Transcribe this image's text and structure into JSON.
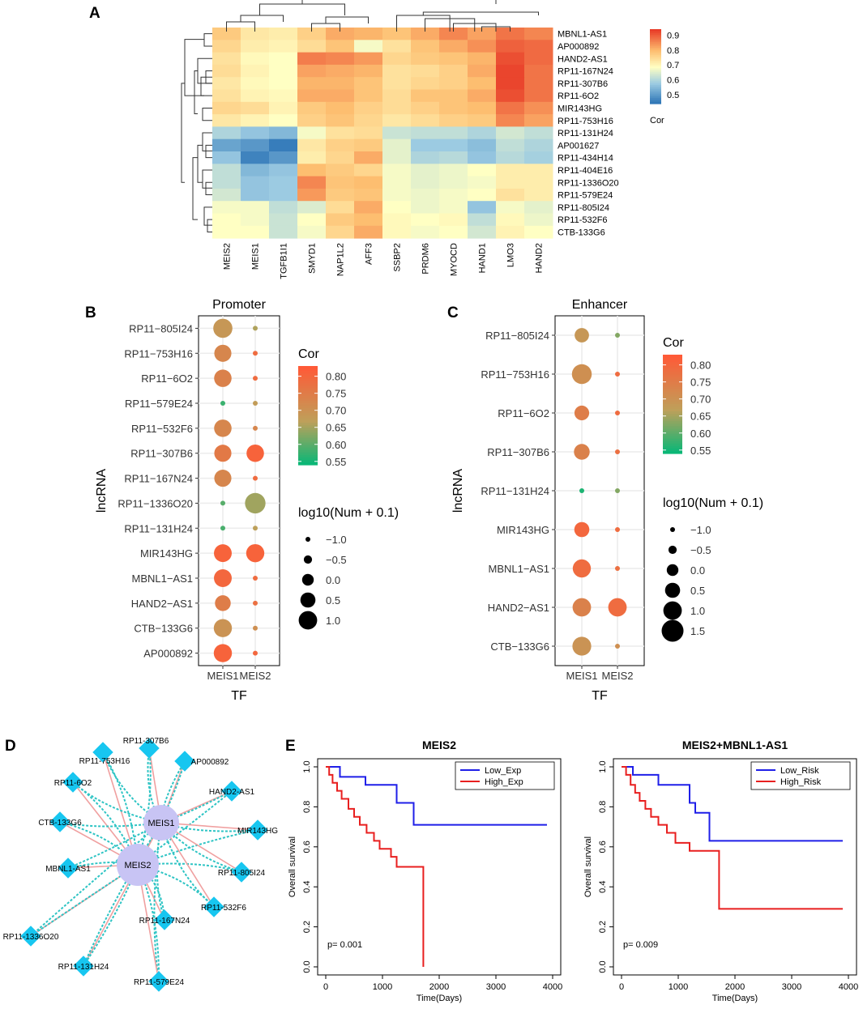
{
  "panels": {
    "A": "A",
    "B": "B",
    "C": "C",
    "D": "D",
    "E": "E"
  },
  "chart_data": [
    {
      "id": "A",
      "type": "heatmap",
      "title": "",
      "columns": [
        "MEIS2",
        "MEIS1",
        "TGFB1I1",
        "SMYD1",
        "NAP1L2",
        "AFF3",
        "SSBP2",
        "PRDM6",
        "MYOCD",
        "HAND1",
        "LMO3",
        "HAND2"
      ],
      "rows": [
        "MBNL1-AS1",
        "AP000892",
        "HAND2-AS1",
        "RP11-167N24",
        "RP11-307B6",
        "RP11-6O2",
        "MIR143HG",
        "RP11-753H16",
        "RP11-131H24",
        "AP001627",
        "RP11-434H14",
        "RP11-404E16",
        "RP11-1336O20",
        "RP11-579E24",
        "RP11-805I24",
        "RP11-532F6",
        "CTB-133G6"
      ],
      "values": [
        [
          0.78,
          0.73,
          0.72,
          0.77,
          0.82,
          0.81,
          0.79,
          0.82,
          0.86,
          0.83,
          0.88,
          0.86
        ],
        [
          0.76,
          0.72,
          0.71,
          0.75,
          0.79,
          0.68,
          0.74,
          0.79,
          0.82,
          0.85,
          0.9,
          0.89
        ],
        [
          0.74,
          0.7,
          0.69,
          0.87,
          0.86,
          0.84,
          0.76,
          0.78,
          0.79,
          0.81,
          0.92,
          0.89
        ],
        [
          0.75,
          0.71,
          0.69,
          0.83,
          0.82,
          0.81,
          0.74,
          0.75,
          0.77,
          0.82,
          0.93,
          0.88
        ],
        [
          0.73,
          0.7,
          0.69,
          0.81,
          0.81,
          0.79,
          0.74,
          0.76,
          0.77,
          0.8,
          0.93,
          0.88
        ],
        [
          0.74,
          0.71,
          0.7,
          0.82,
          0.82,
          0.79,
          0.75,
          0.79,
          0.79,
          0.82,
          0.92,
          0.88
        ],
        [
          0.76,
          0.75,
          0.71,
          0.78,
          0.8,
          0.77,
          0.75,
          0.77,
          0.79,
          0.8,
          0.88,
          0.85
        ],
        [
          0.73,
          0.71,
          0.69,
          0.77,
          0.79,
          0.76,
          0.73,
          0.75,
          0.77,
          0.78,
          0.86,
          0.83
        ],
        [
          0.6,
          0.57,
          0.55,
          0.68,
          0.74,
          0.75,
          0.63,
          0.62,
          0.62,
          0.6,
          0.64,
          0.62
        ],
        [
          0.52,
          0.5,
          0.46,
          0.73,
          0.77,
          0.78,
          0.66,
          0.58,
          0.58,
          0.56,
          0.62,
          0.6
        ],
        [
          0.57,
          0.47,
          0.5,
          0.72,
          0.76,
          0.82,
          0.66,
          0.6,
          0.61,
          0.57,
          0.61,
          0.59
        ],
        [
          0.62,
          0.55,
          0.57,
          0.8,
          0.78,
          0.76,
          0.68,
          0.66,
          0.67,
          0.69,
          0.72,
          0.72
        ],
        [
          0.62,
          0.57,
          0.58,
          0.86,
          0.79,
          0.8,
          0.68,
          0.66,
          0.67,
          0.68,
          0.72,
          0.72
        ],
        [
          0.64,
          0.57,
          0.58,
          0.84,
          0.78,
          0.79,
          0.68,
          0.67,
          0.68,
          0.69,
          0.74,
          0.72
        ],
        [
          0.68,
          0.68,
          0.62,
          0.65,
          0.75,
          0.82,
          0.69,
          0.67,
          0.68,
          0.57,
          0.68,
          0.66
        ],
        [
          0.69,
          0.68,
          0.63,
          0.69,
          0.78,
          0.8,
          0.7,
          0.69,
          0.7,
          0.62,
          0.7,
          0.67
        ],
        [
          0.69,
          0.69,
          0.63,
          0.68,
          0.76,
          0.82,
          0.7,
          0.68,
          0.69,
          0.64,
          0.71,
          0.69
        ]
      ],
      "legend": {
        "title": "Cor",
        "ticks": [
          "0.9",
          "0.8",
          "0.7",
          "0.6",
          "0.5"
        ],
        "min": 0.44,
        "max": 0.94
      }
    },
    {
      "id": "B",
      "type": "scatter",
      "title": "Promoter",
      "xlabel": "TF",
      "ylabel": "lncRNA",
      "categories_x": [
        "MEIS1",
        "MEIS2"
      ],
      "categories_y": [
        "RP11−805I24",
        "RP11−753H16",
        "RP11−6O2",
        "RP11−579E24",
        "RP11−532F6",
        "RP11−307B6",
        "RP11−167N24",
        "RP11−1336O20",
        "RP11−131H24",
        "MIR143HG",
        "MBNL1−AS1",
        "HAND2−AS1",
        "CTB−133G6",
        "AP000892"
      ],
      "points": [
        {
          "x": "MEIS1",
          "y": "RP11−805I24",
          "num": 1.1,
          "cor": 0.69
        },
        {
          "x": "MEIS2",
          "y": "RP11−805I24",
          "num": -1.0,
          "cor": 0.66
        },
        {
          "x": "MEIS1",
          "y": "RP11−753H16",
          "num": 0.8,
          "cor": 0.73
        },
        {
          "x": "MEIS2",
          "y": "RP11−753H16",
          "num": -1.0,
          "cor": 0.79
        },
        {
          "x": "MEIS1",
          "y": "RP11−6O2",
          "num": 0.85,
          "cor": 0.74
        },
        {
          "x": "MEIS2",
          "y": "RP11−6O2",
          "num": -1.0,
          "cor": 0.79
        },
        {
          "x": "MEIS1",
          "y": "RP11−579E24",
          "num": -1.0,
          "cor": 0.58
        },
        {
          "x": "MEIS2",
          "y": "RP11−579E24",
          "num": -1.0,
          "cor": 0.68
        },
        {
          "x": "MEIS1",
          "y": "RP11−532F6",
          "num": 0.85,
          "cor": 0.73
        },
        {
          "x": "MEIS2",
          "y": "RP11−532F6",
          "num": -1.0,
          "cor": 0.73
        },
        {
          "x": "MEIS1",
          "y": "RP11−307B6",
          "num": 0.8,
          "cor": 0.76
        },
        {
          "x": "MEIS2",
          "y": "RP11−307B6",
          "num": 0.85,
          "cor": 0.81
        },
        {
          "x": "MEIS1",
          "y": "RP11−167N24",
          "num": 0.8,
          "cor": 0.73
        },
        {
          "x": "MEIS2",
          "y": "RP11−167N24",
          "num": -1.0,
          "cor": 0.79
        },
        {
          "x": "MEIS1",
          "y": "RP11−1336O20",
          "num": -1.0,
          "cor": 0.6
        },
        {
          "x": "MEIS2",
          "y": "RP11−1336O20",
          "num": 1.3,
          "cor": 0.65
        },
        {
          "x": "MEIS1",
          "y": "RP11−131H24",
          "num": -1.0,
          "cor": 0.59
        },
        {
          "x": "MEIS2",
          "y": "RP11−131H24",
          "num": -1.0,
          "cor": 0.67
        },
        {
          "x": "MEIS1",
          "y": "MIR143HG",
          "num": 0.9,
          "cor": 0.81
        },
        {
          "x": "MEIS2",
          "y": "MIR143HG",
          "num": 0.95,
          "cor": 0.81
        },
        {
          "x": "MEIS1",
          "y": "MBNL1−AS1",
          "num": 0.9,
          "cor": 0.8
        },
        {
          "x": "MEIS2",
          "y": "MBNL1−AS1",
          "num": -1.0,
          "cor": 0.79
        },
        {
          "x": "MEIS1",
          "y": "HAND2−AS1",
          "num": 0.6,
          "cor": 0.75
        },
        {
          "x": "MEIS2",
          "y": "HAND2−AS1",
          "num": -1.0,
          "cor": 0.78
        },
        {
          "x": "MEIS1",
          "y": "CTB−133G6",
          "num": 0.95,
          "cor": 0.7
        },
        {
          "x": "MEIS2",
          "y": "CTB−133G6",
          "num": -1.0,
          "cor": 0.71
        },
        {
          "x": "MEIS1",
          "y": "AP000892",
          "num": 0.95,
          "cor": 0.81
        },
        {
          "x": "MEIS2",
          "y": "AP000892",
          "num": -1.0,
          "cor": 0.8
        }
      ],
      "color_legend": {
        "title": "Cor",
        "ticks": [
          "0.80",
          "0.75",
          "0.70",
          "0.65",
          "0.60",
          "0.55"
        ],
        "min": 0.54,
        "max": 0.83
      },
      "size_legend": {
        "title": "log10(Num + 0.1)",
        "labels": [
          "−1.0",
          "−0.5",
          "0.0",
          "0.5",
          "1.0"
        ],
        "values": [
          -1.0,
          -0.5,
          0.0,
          0.5,
          1.0
        ]
      }
    },
    {
      "id": "C",
      "type": "scatter",
      "title": "Enhancer",
      "xlabel": "TF",
      "ylabel": "lncRNA",
      "categories_x": [
        "MEIS1",
        "MEIS2"
      ],
      "categories_y": [
        "RP11−805I24",
        "RP11−753H16",
        "RP11−6O2",
        "RP11−307B6",
        "RP11−131H24",
        "MIR143HG",
        "MBNL1−AS1",
        "HAND2−AS1",
        "CTB−133G6"
      ],
      "points": [
        {
          "x": "MEIS1",
          "y": "RP11−805I24",
          "num": 0.4,
          "cor": 0.69
        },
        {
          "x": "MEIS2",
          "y": "RP11−805I24",
          "num": -1.0,
          "cor": 0.63
        },
        {
          "x": "MEIS1",
          "y": "RP11−753H16",
          "num": 1.2,
          "cor": 0.71
        },
        {
          "x": "MEIS2",
          "y": "RP11−753H16",
          "num": -1.0,
          "cor": 0.79
        },
        {
          "x": "MEIS1",
          "y": "RP11−6O2",
          "num": 0.45,
          "cor": 0.75
        },
        {
          "x": "MEIS2",
          "y": "RP11−6O2",
          "num": -1.0,
          "cor": 0.79
        },
        {
          "x": "MEIS1",
          "y": "RP11−307B6",
          "num": 0.6,
          "cor": 0.74
        },
        {
          "x": "MEIS2",
          "y": "RP11−307B6",
          "num": -1.0,
          "cor": 0.78
        },
        {
          "x": "MEIS1",
          "y": "RP11−131H24",
          "num": -1.0,
          "cor": 0.56
        },
        {
          "x": "MEIS2",
          "y": "RP11−131H24",
          "num": -1.0,
          "cor": 0.63
        },
        {
          "x": "MEIS1",
          "y": "MIR143HG",
          "num": 0.5,
          "cor": 0.8
        },
        {
          "x": "MEIS2",
          "y": "MIR143HG",
          "num": -1.0,
          "cor": 0.79
        },
        {
          "x": "MEIS1",
          "y": "MBNL1−AS1",
          "num": 0.95,
          "cor": 0.79
        },
        {
          "x": "MEIS2",
          "y": "MBNL1−AS1",
          "num": -1.0,
          "cor": 0.78
        },
        {
          "x": "MEIS1",
          "y": "HAND2−AS1",
          "num": 1.0,
          "cor": 0.74
        },
        {
          "x": "MEIS2",
          "y": "HAND2−AS1",
          "num": 1.0,
          "cor": 0.79
        },
        {
          "x": "MEIS1",
          "y": "CTB−133G6",
          "num": 1.05,
          "cor": 0.7
        },
        {
          "x": "MEIS2",
          "y": "CTB−133G6",
          "num": -1.0,
          "cor": 0.71
        }
      ],
      "color_legend": {
        "title": "Cor",
        "ticks": [
          "0.80",
          "0.75",
          "0.70",
          "0.65",
          "0.60",
          "0.55"
        ],
        "min": 0.54,
        "max": 0.83
      },
      "size_legend": {
        "title": "log10(Num + 0.1)",
        "labels": [
          "−1.0",
          "−0.5",
          "0.0",
          "0.5",
          "1.0",
          "1.5"
        ],
        "values": [
          -1.0,
          -0.5,
          0.0,
          0.5,
          1.0,
          1.5
        ]
      }
    },
    {
      "id": "D",
      "type": "network",
      "hubs": [
        "MEIS1",
        "MEIS2"
      ],
      "nodes": [
        "RP11-307B6",
        "RP11-753H16",
        "AP000892",
        "RP11-6O2",
        "HAND2-AS1",
        "CTB-133G6",
        "MIR143HG",
        "MBNL1-AS1",
        "RP11-805I24",
        "RP11-1336O20",
        "RP11-532F6",
        "RP11-167N24",
        "RP11-131H24",
        "RP11-579E24"
      ],
      "colors": {
        "hub": "#c8c4f4",
        "node": "#17c6f0",
        "edge_solid": "#f0a0a0",
        "edge_dashed": "#2ec4c4"
      }
    },
    {
      "id": "E1",
      "type": "line",
      "title": "MEIS2",
      "xlabel": "Time(Days)",
      "ylabel": "Overall survival",
      "xlim": [
        0,
        4000
      ],
      "ylim": [
        0,
        1.0
      ],
      "xticks": [
        0,
        1000,
        2000,
        3000,
        4000
      ],
      "yticks": [
        0.0,
        0.2,
        0.4,
        0.6,
        0.8,
        1.0
      ],
      "annotation": "p= 0.001",
      "series": [
        {
          "name": "Low_Exp",
          "color": "#1f1fe8",
          "x": [
            0,
            250,
            450,
            700,
            1000,
            1250,
            1550,
            3900
          ],
          "y": [
            1.0,
            0.95,
            0.95,
            0.91,
            0.91,
            0.82,
            0.71,
            0.71
          ]
        },
        {
          "name": "High_Exp",
          "color": "#e81f1f",
          "x": [
            0,
            60,
            120,
            200,
            280,
            400,
            500,
            600,
            720,
            850,
            950,
            1150,
            1250,
            1720
          ],
          "y": [
            1.0,
            0.96,
            0.92,
            0.88,
            0.84,
            0.79,
            0.75,
            0.71,
            0.67,
            0.63,
            0.59,
            0.55,
            0.5,
            0.0
          ]
        }
      ]
    },
    {
      "id": "E2",
      "type": "line",
      "title": "MEIS2+MBNL1-AS1",
      "xlabel": "Time(Days)",
      "ylabel": "Overall survival",
      "xlim": [
        0,
        4000
      ],
      "ylim": [
        0,
        1.0
      ],
      "xticks": [
        0,
        1000,
        2000,
        3000,
        4000
      ],
      "yticks": [
        0.0,
        0.2,
        0.4,
        0.6,
        0.8,
        1.0
      ],
      "annotation": "p= 0.009",
      "series": [
        {
          "name": "Low_Risk",
          "color": "#1f1fe8",
          "x": [
            0,
            200,
            400,
            650,
            900,
            1200,
            1300,
            1550,
            3900
          ],
          "y": [
            1.0,
            0.96,
            0.96,
            0.91,
            0.91,
            0.82,
            0.77,
            0.63,
            0.63
          ]
        },
        {
          "name": "High_Risk",
          "color": "#e81f1f",
          "x": [
            0,
            80,
            160,
            240,
            320,
            420,
            520,
            650,
            800,
            950,
            1200,
            1720,
            3900
          ],
          "y": [
            1.0,
            0.96,
            0.91,
            0.87,
            0.83,
            0.79,
            0.75,
            0.71,
            0.67,
            0.62,
            0.58,
            0.29,
            0.29
          ]
        }
      ]
    }
  ]
}
